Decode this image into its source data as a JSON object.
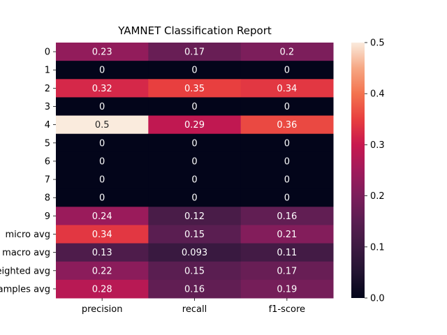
{
  "chart_data": {
    "type": "heatmap",
    "title": "YAMNET Classification Report",
    "xlabel": "",
    "ylabel": "",
    "columns": [
      "precision",
      "recall",
      "f1-score"
    ],
    "rows": [
      "0",
      "1",
      "2",
      "3",
      "4",
      "5",
      "6",
      "7",
      "8",
      "9",
      "micro avg",
      "macro avg",
      "weighted avg",
      "samples avg"
    ],
    "values": [
      [
        0.23,
        0.17,
        0.2
      ],
      [
        0,
        0,
        0
      ],
      [
        0.32,
        0.35,
        0.34
      ],
      [
        0,
        0,
        0
      ],
      [
        0.5,
        0.29,
        0.36
      ],
      [
        0,
        0,
        0
      ],
      [
        0,
        0,
        0
      ],
      [
        0,
        0,
        0
      ],
      [
        0,
        0,
        0
      ],
      [
        0.24,
        0.12,
        0.16
      ],
      [
        0.34,
        0.15,
        0.21
      ],
      [
        0.13,
        0.093,
        0.11
      ],
      [
        0.22,
        0.15,
        0.17
      ],
      [
        0.28,
        0.16,
        0.19
      ]
    ],
    "value_labels": [
      [
        "0.23",
        "0.17",
        "0.2"
      ],
      [
        "0",
        "0",
        "0"
      ],
      [
        "0.32",
        "0.35",
        "0.34"
      ],
      [
        "0",
        "0",
        "0"
      ],
      [
        "0.5",
        "0.29",
        "0.36"
      ],
      [
        "0",
        "0",
        "0"
      ],
      [
        "0",
        "0",
        "0"
      ],
      [
        "0",
        "0",
        "0"
      ],
      [
        "0",
        "0",
        "0"
      ],
      [
        "0.24",
        "0.12",
        "0.16"
      ],
      [
        "0.34",
        "0.15",
        "0.21"
      ],
      [
        "0.13",
        "0.093",
        "0.11"
      ],
      [
        "0.22",
        "0.15",
        "0.17"
      ],
      [
        "0.28",
        "0.16",
        "0.19"
      ]
    ],
    "colorbar": {
      "range": [
        0.0,
        0.5
      ],
      "ticks": [
        "0.0",
        "0.1",
        "0.2",
        "0.3",
        "0.4",
        "0.5"
      ],
      "colormap": "rocket"
    },
    "grid": false,
    "legend": "right"
  }
}
